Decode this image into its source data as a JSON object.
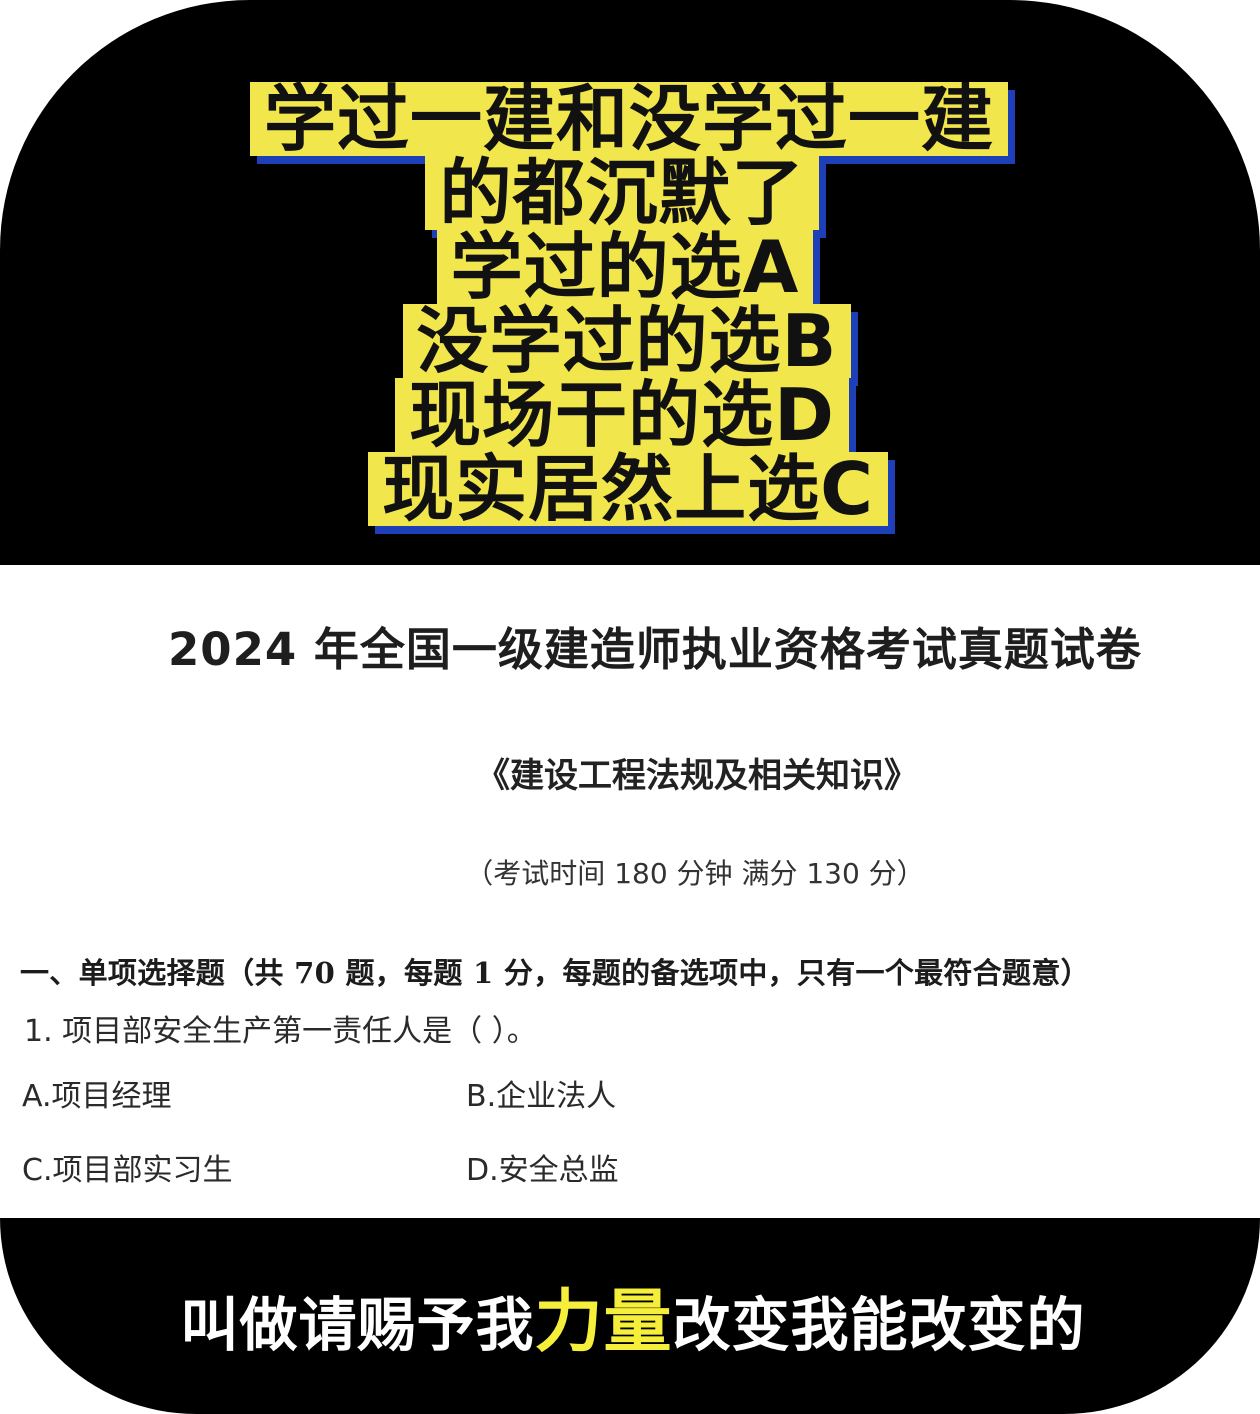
{
  "caption": {
    "lines": [
      "学过一建和没学过一建",
      "的都沉默了",
      "学过的选A",
      "没学过的选B",
      "现场干的选D",
      "现实居然上选C"
    ],
    "highlight_color": "#f2e64d",
    "shadow_color": "#1d3fb8"
  },
  "document": {
    "title": "2024 年全国一级建造师执业资格考试真题试卷",
    "subtitle": "《建设工程法规及相关知识》",
    "meta": "（考试时间 180 分钟  满分 130 分）",
    "section_heading": "一、单项选择题（共 70 题，每题 1 分，每题的备选项中，只有一个最符合题意）",
    "question": "1.  项目部安全生产第一责任人是（     ）。",
    "options": {
      "a": "A.项目经理",
      "b": "B.企业法人",
      "c": "C.项目部实习生",
      "d": "D.安全总监"
    }
  },
  "bottom_subtitle": {
    "before": "叫做请赐予我",
    "highlight": "力量",
    "after": "改变我能改变的",
    "highlight_color": "#f5ee3a"
  }
}
